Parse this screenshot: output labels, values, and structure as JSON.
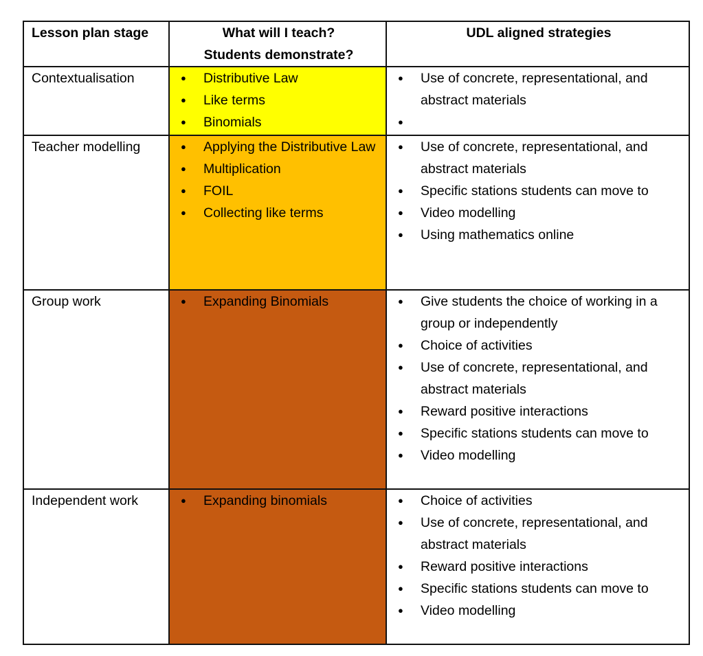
{
  "table": {
    "headers": [
      "Lesson plan stage",
      "What will I teach?\nStudents demonstrate?",
      "UDL aligned strategies"
    ],
    "header_lines": [
      "What will I teach?",
      "Students demonstrate?"
    ],
    "colors": {
      "yellow": "#FFFF00",
      "orange": "#FFC000",
      "brown": "#C55A11"
    },
    "rows": [
      {
        "stage": "Contextualisation",
        "fill": "#FFFF00",
        "teach": [
          "Distributive Law",
          "Like terms",
          "Binomials"
        ],
        "strategies": [
          "Use of concrete, representational, and abstract materials",
          ""
        ]
      },
      {
        "stage": "Teacher modelling",
        "fill": "#FFC000",
        "teach": [
          "Applying the Distributive Law",
          "Multiplication",
          "FOIL",
          "Collecting like terms"
        ],
        "strategies": [
          "Use of concrete, representational, and abstract materials",
          "Specific stations students can move to",
          "Video modelling",
          "Using mathematics online"
        ]
      },
      {
        "stage": "Group work",
        "fill": "#C55A11",
        "teach": [
          "Expanding Binomials"
        ],
        "strategies": [
          "Give students the choice of working in a group or independently",
          "Choice of activities",
          "Use of concrete, representational, and abstract materials",
          "Reward positive interactions",
          "Specific stations students can move to",
          "Video modelling"
        ]
      },
      {
        "stage": "Independent work",
        "fill": "#C55A11",
        "teach": [
          "Expanding binomials"
        ],
        "strategies": [
          "Choice of activities",
          "Use of concrete, representational, and abstract materials",
          "Reward positive interactions",
          "Specific stations students can move to",
          "Video modelling"
        ]
      }
    ]
  }
}
